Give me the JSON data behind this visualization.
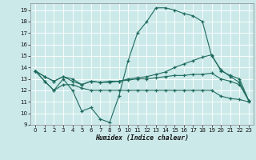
{
  "xlabel": "Humidex (Indice chaleur)",
  "xlim": [
    -0.5,
    23.5
  ],
  "ylim": [
    9,
    19.6
  ],
  "yticks": [
    9,
    10,
    11,
    12,
    13,
    14,
    15,
    16,
    17,
    18,
    19
  ],
  "xticks": [
    0,
    1,
    2,
    3,
    4,
    5,
    6,
    7,
    8,
    9,
    10,
    11,
    12,
    13,
    14,
    15,
    16,
    17,
    18,
    19,
    20,
    21,
    22,
    23
  ],
  "bg_color": "#cce9e9",
  "grid_color": "#b8d8d8",
  "line_color": "#1e6b5e",
  "lines": [
    {
      "x": [
        0,
        1,
        2,
        3,
        4,
        5,
        6,
        7,
        8,
        9,
        10,
        11,
        12,
        13,
        14,
        15,
        16,
        17,
        18,
        19,
        20,
        21,
        22,
        23
      ],
      "y": [
        13.7,
        12.8,
        12.0,
        13.0,
        12.0,
        10.2,
        10.5,
        9.5,
        9.2,
        11.5,
        14.6,
        17.0,
        18.0,
        19.2,
        19.2,
        19.0,
        18.7,
        18.5,
        18.0,
        15.0,
        13.8,
        13.2,
        12.7,
        11.1
      ]
    },
    {
      "x": [
        0,
        1,
        2,
        3,
        4,
        5,
        6,
        7,
        8,
        9,
        10,
        11,
        12,
        13,
        14,
        15,
        16,
        17,
        18,
        19,
        20,
        21,
        22,
        23
      ],
      "y": [
        13.7,
        13.2,
        12.8,
        13.2,
        13.0,
        12.5,
        12.8,
        12.7,
        12.7,
        12.8,
        13.0,
        13.1,
        13.2,
        13.4,
        13.6,
        14.0,
        14.3,
        14.6,
        14.9,
        15.1,
        13.7,
        13.3,
        13.0,
        11.1
      ]
    },
    {
      "x": [
        0,
        1,
        2,
        3,
        4,
        5,
        6,
        7,
        8,
        9,
        10,
        11,
        12,
        13,
        14,
        15,
        16,
        17,
        18,
        19,
        20,
        21,
        22,
        23
      ],
      "y": [
        13.7,
        13.2,
        12.8,
        13.2,
        12.8,
        12.5,
        12.8,
        12.7,
        12.8,
        12.8,
        12.9,
        13.0,
        13.0,
        13.1,
        13.2,
        13.3,
        13.3,
        13.4,
        13.4,
        13.5,
        13.0,
        12.8,
        12.5,
        11.1
      ]
    },
    {
      "x": [
        0,
        1,
        2,
        3,
        4,
        5,
        6,
        7,
        8,
        9,
        10,
        11,
        12,
        13,
        14,
        15,
        16,
        17,
        18,
        19,
        20,
        21,
        22,
        23
      ],
      "y": [
        13.7,
        12.8,
        12.0,
        12.5,
        12.5,
        12.2,
        12.0,
        12.0,
        12.0,
        12.0,
        12.0,
        12.0,
        12.0,
        12.0,
        12.0,
        12.0,
        12.0,
        12.0,
        12.0,
        12.0,
        11.5,
        11.3,
        11.2,
        11.0
      ]
    }
  ]
}
